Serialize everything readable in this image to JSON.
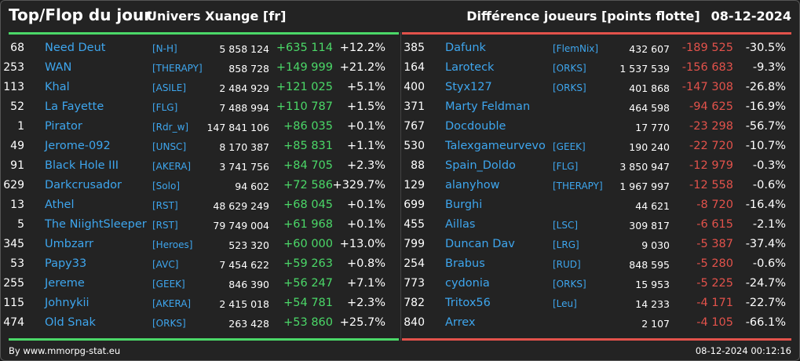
{
  "header": {
    "title": "Top/Flop du jour",
    "universe": "Univers Xuange [fr]",
    "metric": "Différence joueurs [points flotte]",
    "date": "08-12-2024"
  },
  "top": [
    {
      "rank": "68",
      "name": "Need Deut",
      "ally": "[N-H]",
      "points": "5 858 124",
      "diff": "+635 114",
      "pct": "+12.2%"
    },
    {
      "rank": "253",
      "name": "WAN",
      "ally": "[THERAPY]",
      "points": "858 728",
      "diff": "+149 999",
      "pct": "+21.2%"
    },
    {
      "rank": "113",
      "name": "Khal",
      "ally": "[ASILE]",
      "points": "2 484 929",
      "diff": "+121 025",
      "pct": "+5.1%"
    },
    {
      "rank": "52",
      "name": "La Fayette",
      "ally": "[FLG]",
      "points": "7 488 994",
      "diff": "+110 787",
      "pct": "+1.5%"
    },
    {
      "rank": "1",
      "name": "Pirator",
      "ally": "[Rdr_w]",
      "points": "147 841 106",
      "diff": "+86 035",
      "pct": "+0.1%"
    },
    {
      "rank": "49",
      "name": "Jerome-092",
      "ally": "[UNSC]",
      "points": "8 170 387",
      "diff": "+85 831",
      "pct": "+1.1%"
    },
    {
      "rank": "91",
      "name": "Black Hole III",
      "ally": "[AKERA]",
      "points": "3 741 756",
      "diff": "+84 705",
      "pct": "+2.3%"
    },
    {
      "rank": "629",
      "name": "Darkcrusador",
      "ally": "[Solo]",
      "points": "94 602",
      "diff": "+72 586",
      "pct": "+329.7%"
    },
    {
      "rank": "13",
      "name": "Athel",
      "ally": "[RST]",
      "points": "48 629 249",
      "diff": "+68 045",
      "pct": "+0.1%"
    },
    {
      "rank": "5",
      "name": "The NiightSleeper",
      "ally": "[RST]",
      "points": "79 749 004",
      "diff": "+61 968",
      "pct": "+0.1%"
    },
    {
      "rank": "345",
      "name": "Umbzarr",
      "ally": "[Heroes]",
      "points": "523 320",
      "diff": "+60 000",
      "pct": "+13.0%"
    },
    {
      "rank": "53",
      "name": "Papy33",
      "ally": "[AVC]",
      "points": "7 454 622",
      "diff": "+59 263",
      "pct": "+0.8%"
    },
    {
      "rank": "255",
      "name": "Jereme",
      "ally": "[GEEK]",
      "points": "846 390",
      "diff": "+56 247",
      "pct": "+7.1%"
    },
    {
      "rank": "115",
      "name": "Johnykii",
      "ally": "[AKERA]",
      "points": "2 415 018",
      "diff": "+54 781",
      "pct": "+2.3%"
    },
    {
      "rank": "474",
      "name": "Old Snak",
      "ally": "[ORKS]",
      "points": "263 428",
      "diff": "+53 860",
      "pct": "+25.7%"
    }
  ],
  "flop": [
    {
      "rank": "385",
      "name": "Dafunk",
      "ally": "[FlemNix]",
      "points": "432 607",
      "diff": "-189 525",
      "pct": "-30.5%"
    },
    {
      "rank": "164",
      "name": "Laroteck",
      "ally": "[ORKS]",
      "points": "1 537 539",
      "diff": "-156 683",
      "pct": "-9.3%"
    },
    {
      "rank": "400",
      "name": "Styx127",
      "ally": "[ORKS]",
      "points": "401 868",
      "diff": "-147 308",
      "pct": "-26.8%"
    },
    {
      "rank": "371",
      "name": "Marty Feldman",
      "ally": "",
      "points": "464 598",
      "diff": "-94 625",
      "pct": "-16.9%"
    },
    {
      "rank": "767",
      "name": "Docdouble",
      "ally": "",
      "points": "17 770",
      "diff": "-23 298",
      "pct": "-56.7%"
    },
    {
      "rank": "530",
      "name": "Talexgameurvevo",
      "ally": "[GEEK]",
      "points": "190 240",
      "diff": "-22 720",
      "pct": "-10.7%"
    },
    {
      "rank": "88",
      "name": "Spain_Doldo",
      "ally": "[FLG]",
      "points": "3 850 947",
      "diff": "-12 979",
      "pct": "-0.3%"
    },
    {
      "rank": "129",
      "name": "alanyhow",
      "ally": "[THERAPY]",
      "points": "1 967 997",
      "diff": "-12 558",
      "pct": "-0.6%"
    },
    {
      "rank": "699",
      "name": "Burghi",
      "ally": "",
      "points": "44 621",
      "diff": "-8 720",
      "pct": "-16.4%"
    },
    {
      "rank": "455",
      "name": "Aillas",
      "ally": "[LSC]",
      "points": "309 817",
      "diff": "-6 615",
      "pct": "-2.1%"
    },
    {
      "rank": "799",
      "name": "Duncan Dav",
      "ally": "[LRG]",
      "points": "9 030",
      "diff": "-5 387",
      "pct": "-37.4%"
    },
    {
      "rank": "254",
      "name": "Brabus",
      "ally": "[RUD]",
      "points": "848 595",
      "diff": "-5 280",
      "pct": "-0.6%"
    },
    {
      "rank": "773",
      "name": "cydonia",
      "ally": "[ORKS]",
      "points": "15 953",
      "diff": "-5 225",
      "pct": "-24.7%"
    },
    {
      "rank": "782",
      "name": "Tritox56",
      "ally": "[Leu]",
      "points": "14 233",
      "diff": "-4 171",
      "pct": "-22.7%"
    },
    {
      "rank": "840",
      "name": "Arrex",
      "ally": "",
      "points": "2 107",
      "diff": "-4 105",
      "pct": "-66.1%"
    }
  ],
  "footer": {
    "source": "By www.mmorpg-stat.eu",
    "timestamp": "08-12-2024 00:12:16"
  },
  "colors": {
    "positive": "#4bd868",
    "negative": "#e2524b",
    "link": "#3ea6ee",
    "background": "#232323"
  }
}
